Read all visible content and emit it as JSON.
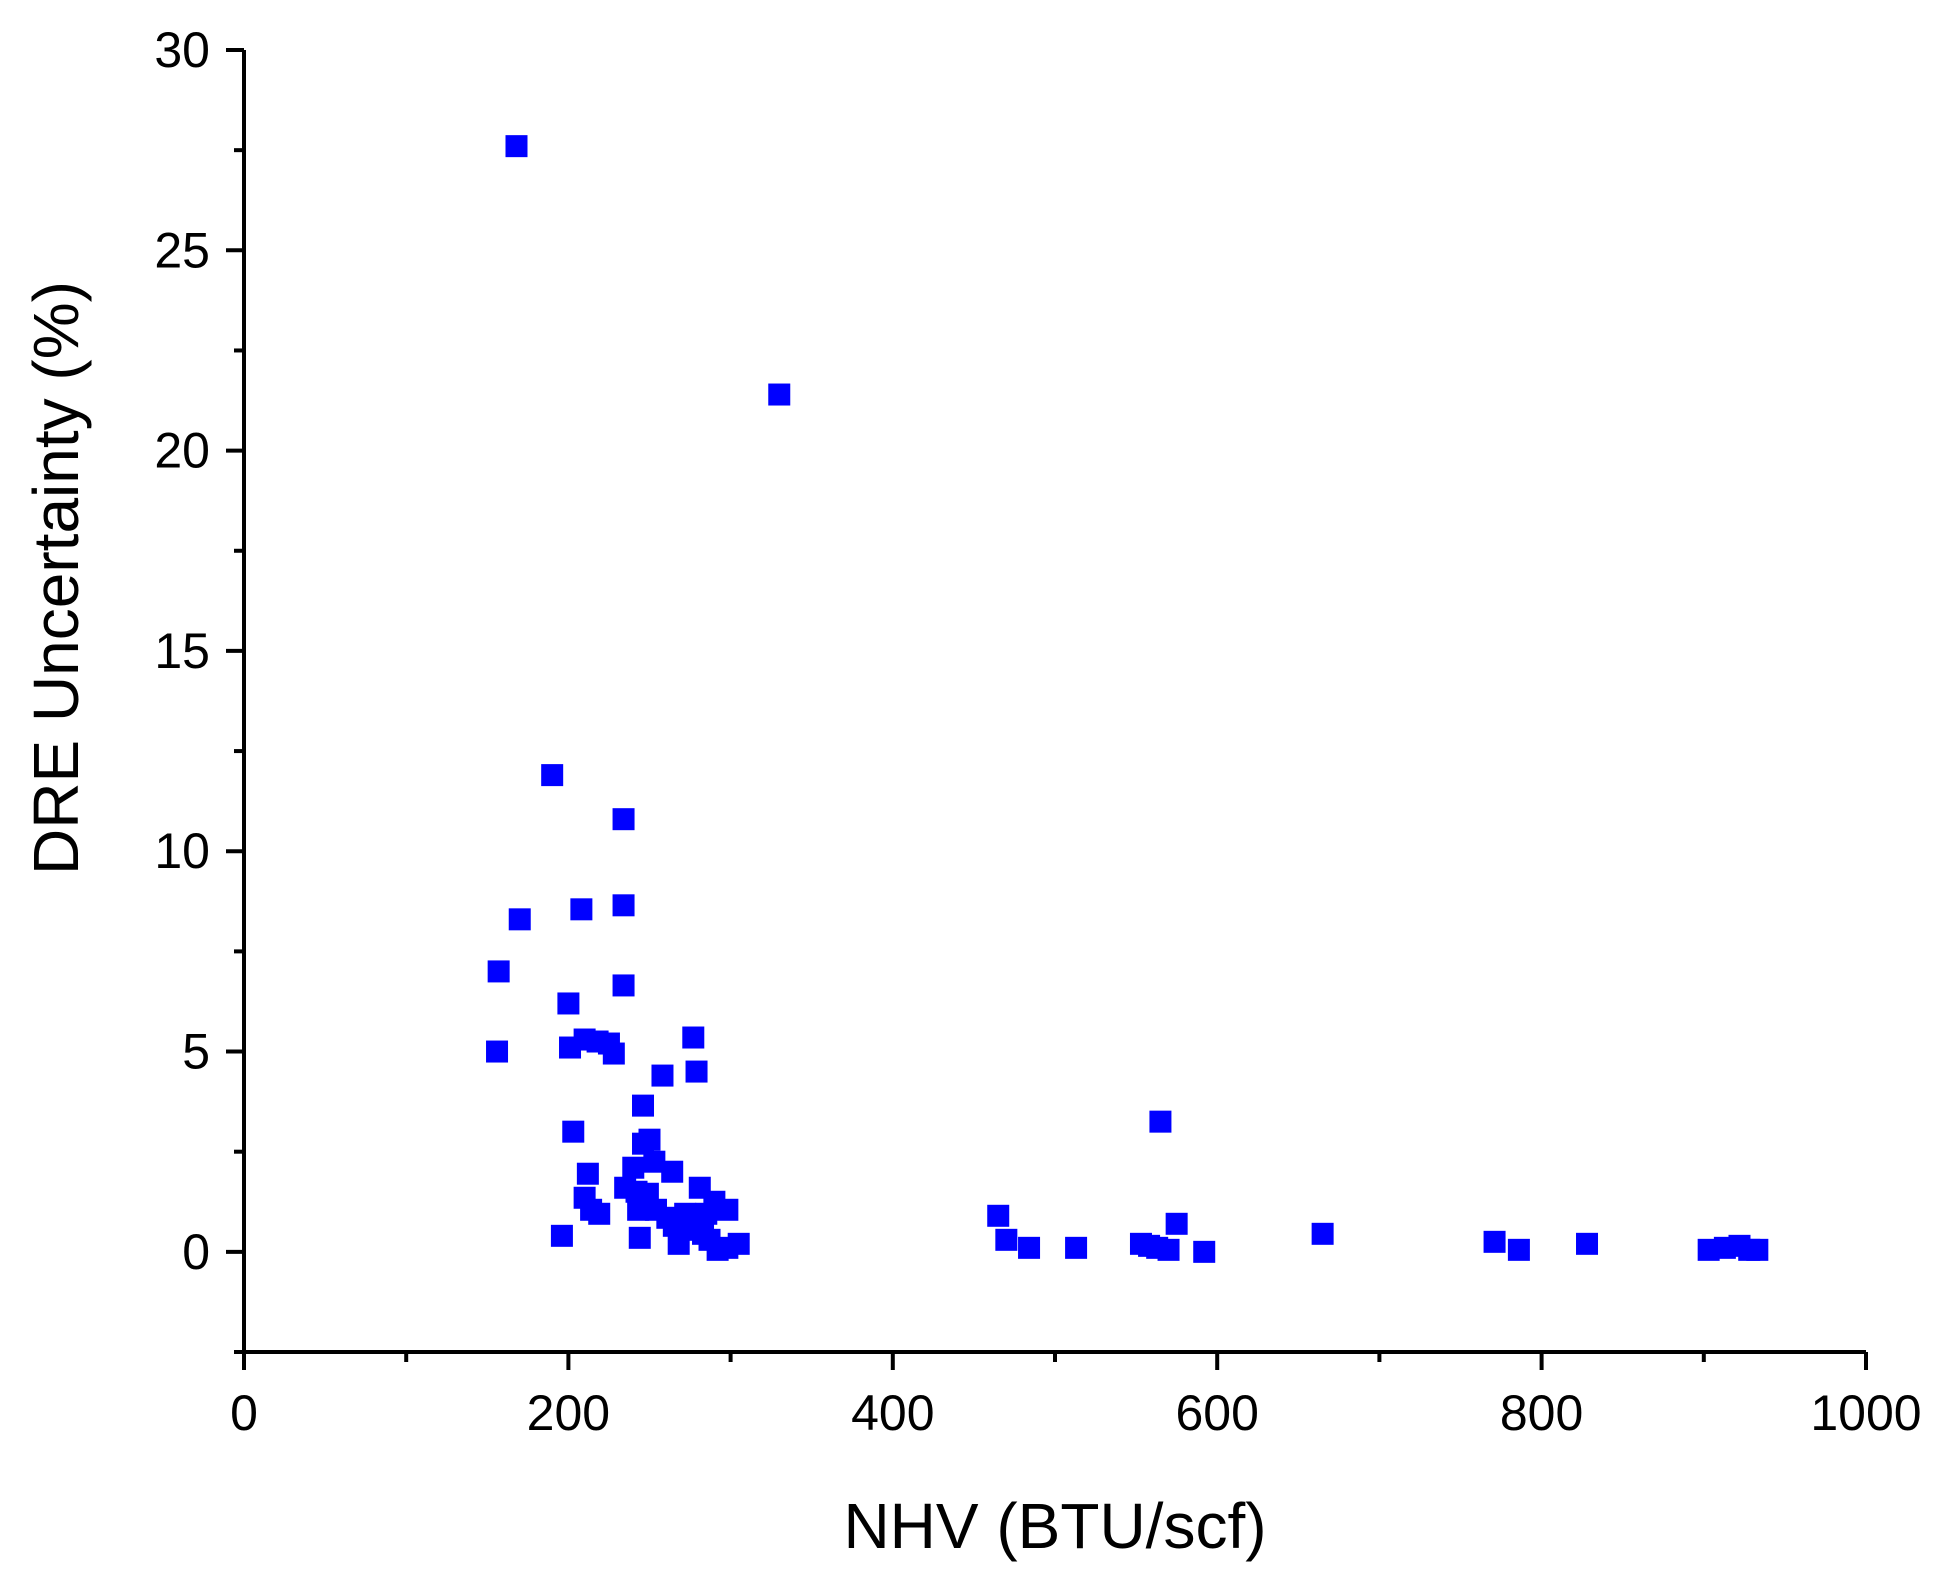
{
  "chart_data": {
    "type": "scatter",
    "title": "",
    "xlabel": "NHV (BTU/scf)",
    "ylabel": "DRE Uncertainty (%)",
    "xlim": [
      0,
      1000
    ],
    "ylim": [
      -2.5,
      30
    ],
    "x_ticks": [
      0,
      200,
      400,
      600,
      800,
      1000
    ],
    "y_ticks": [
      0,
      5,
      10,
      15,
      20,
      25,
      30
    ],
    "x_tick_labels": [
      "0",
      "200",
      "400",
      "600",
      "800",
      "1000"
    ],
    "y_tick_labels": [
      "0",
      "5",
      "10",
      "15",
      "20",
      "25",
      "30"
    ],
    "grid": false,
    "marker": "square",
    "color": "#0000ff",
    "series": [
      {
        "points": [
          [
            168,
            27.6
          ],
          [
            330,
            21.4
          ],
          [
            190,
            11.9
          ],
          [
            234,
            10.8
          ],
          [
            234,
            8.65
          ],
          [
            208,
            8.55
          ],
          [
            170,
            8.3
          ],
          [
            157,
            7.0
          ],
          [
            200,
            6.2
          ],
          [
            234,
            6.65
          ],
          [
            156,
            5.0
          ],
          [
            201,
            5.1
          ],
          [
            210,
            5.3
          ],
          [
            218,
            5.25
          ],
          [
            225,
            5.2
          ],
          [
            228,
            4.95
          ],
          [
            277,
            5.35
          ],
          [
            279,
            4.5
          ],
          [
            258,
            4.4
          ],
          [
            246,
            3.65
          ],
          [
            203,
            3.0
          ],
          [
            565,
            3.25
          ],
          [
            212,
            1.95
          ],
          [
            250,
            2.8
          ],
          [
            246,
            2.7
          ],
          [
            240,
            2.1
          ],
          [
            253,
            2.25
          ],
          [
            264,
            2.0
          ],
          [
            235,
            1.6
          ],
          [
            242,
            1.5
          ],
          [
            281,
            1.6
          ],
          [
            210,
            1.35
          ],
          [
            214,
            1.05
          ],
          [
            219,
            0.95
          ],
          [
            249,
            1.45
          ],
          [
            243,
            1.05
          ],
          [
            254,
            1.05
          ],
          [
            261,
            0.85
          ],
          [
            272,
            0.95
          ],
          [
            290,
            1.25
          ],
          [
            298,
            1.05
          ],
          [
            285,
            0.95
          ],
          [
            265,
            0.65
          ],
          [
            275,
            0.55
          ],
          [
            283,
            0.45
          ],
          [
            196,
            0.4
          ],
          [
            244,
            0.35
          ],
          [
            268,
            0.2
          ],
          [
            287,
            0.3
          ],
          [
            292,
            0.05
          ],
          [
            298,
            0.1
          ],
          [
            305,
            0.2
          ],
          [
            465,
            0.9
          ],
          [
            470,
            0.3
          ],
          [
            484,
            0.1
          ],
          [
            513,
            0.1
          ],
          [
            553,
            0.2
          ],
          [
            558,
            0.15
          ],
          [
            563,
            0.1
          ],
          [
            570,
            0.05
          ],
          [
            575,
            0.7
          ],
          [
            592,
            0.0
          ],
          [
            665,
            0.45
          ],
          [
            771,
            0.25
          ],
          [
            786,
            0.05
          ],
          [
            828,
            0.2
          ],
          [
            903,
            0.05
          ],
          [
            913,
            0.1
          ],
          [
            922,
            0.15
          ],
          [
            928,
            0.05
          ],
          [
            933,
            0.05
          ]
        ]
      }
    ]
  }
}
